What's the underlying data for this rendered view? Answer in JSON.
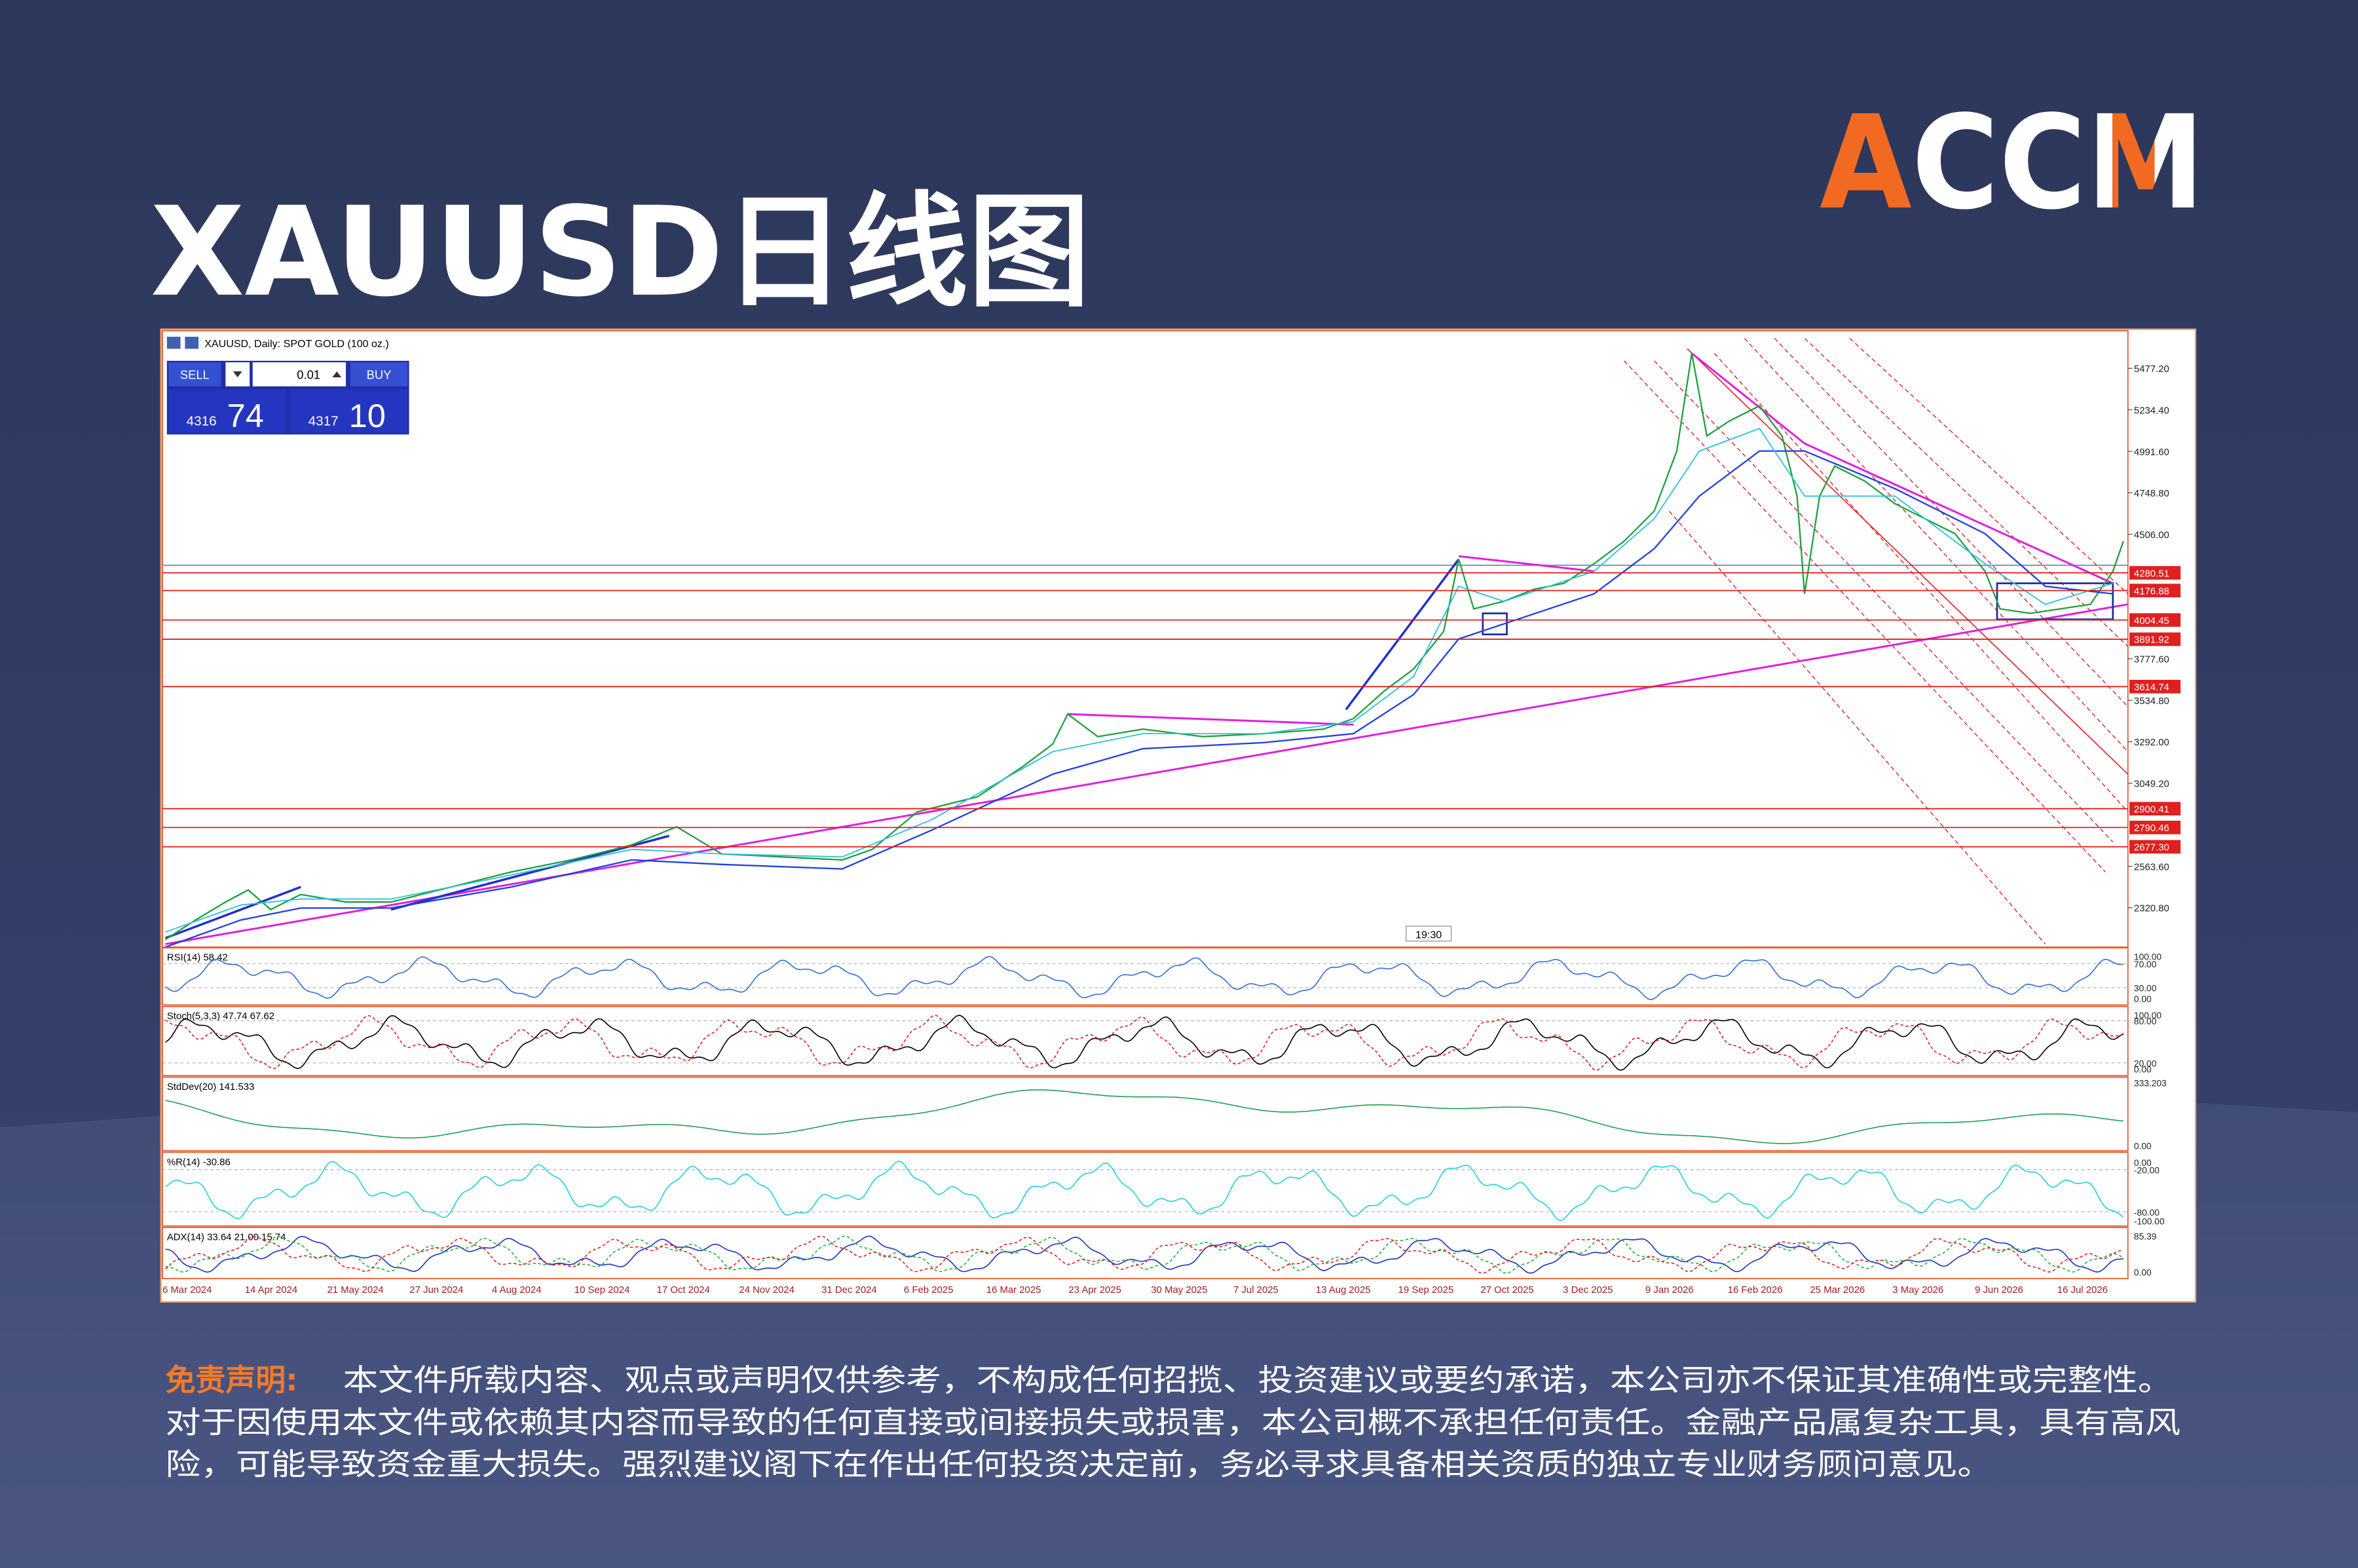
{
  "header": {
    "title": "XAUUSD日线图",
    "logo": "ACCM"
  },
  "chart_window": {
    "caption": "XAUUSD, Daily:  SPOT GOLD (100 oz.)",
    "trade_panel": {
      "sell": "SELL",
      "buy": "BUY",
      "lot": "0.01",
      "bid_big": "4316",
      "bid_small": "74",
      "ask_big": "4317",
      "ask_small": "10"
    },
    "price_axis": [
      "5477.20",
      "5234.40",
      "4991.60",
      "4748.80",
      "4506.00",
      "3777.60",
      "3534.80",
      "3292.00",
      "3049.20",
      "2563.60",
      "2320.80"
    ],
    "level_labels": [
      "4280.51",
      "4176.88",
      "4004.45",
      "3891.92",
      "3614.74",
      "2900.41",
      "2790.46",
      "2677.30"
    ],
    "time_marker": "19:30",
    "date_axis": [
      "6 Mar 2024",
      "14 Apr 2024",
      "21 May 2024",
      "27 Jun 2024",
      "4 Aug 2024",
      "10 Sep 2024",
      "17 Oct 2024",
      "24 Nov 2024",
      "31 Dec 2024",
      "6 Feb 2025",
      "16 Mar 2025",
      "23 Apr 2025",
      "30 May 2025",
      "7 Jul 2025",
      "13 Aug 2025",
      "19 Sep 2025",
      "27 Oct 2025",
      "3 Dec 2025",
      "9 Jan 2026",
      "16 Feb 2026",
      "25 Mar 2026",
      "3 May 2026",
      "9 Jun 2026",
      "16 Jul 2026"
    ],
    "indicators": [
      {
        "label": "RSI(14) 58.42",
        "axis": [
          "100.00",
          "70.00",
          "30.00",
          "0.00"
        ]
      },
      {
        "label": "Stoch(5,3,3) 47.74 67.62",
        "axis": [
          "100.00",
          "80.00",
          "20.00",
          "0.00"
        ]
      },
      {
        "label": "StdDev(20) 141.533",
        "axis": [
          "333.203",
          "0.00"
        ]
      },
      {
        "label": "%R(14) -30.86",
        "axis": [
          "0.00",
          "-20.00",
          "-80.00",
          "-100.00"
        ]
      },
      {
        "label": "ADX(14) 33.64 21.00 15.74",
        "axis": [
          "85.39",
          "0.00"
        ]
      }
    ]
  },
  "disclaimer": {
    "label": "免责声明:",
    "lines": [
      "本文件所载内容、观点或声明仅供参考，不构成任何招揽、投资建议或要约承诺，本公司亦不保证其准确性或完整性。",
      "对于因使用本文件或依赖其内容而导致的任何直接或间接损失或损害，本公司概不承担任何责任。金融产品属复杂工具，具有高风",
      "险，可能导致资金重大损失。强烈建议阁下在作出任何投资决定前，务必寻求具备相关资质的独立专业财务顾问意见。"
    ]
  }
}
